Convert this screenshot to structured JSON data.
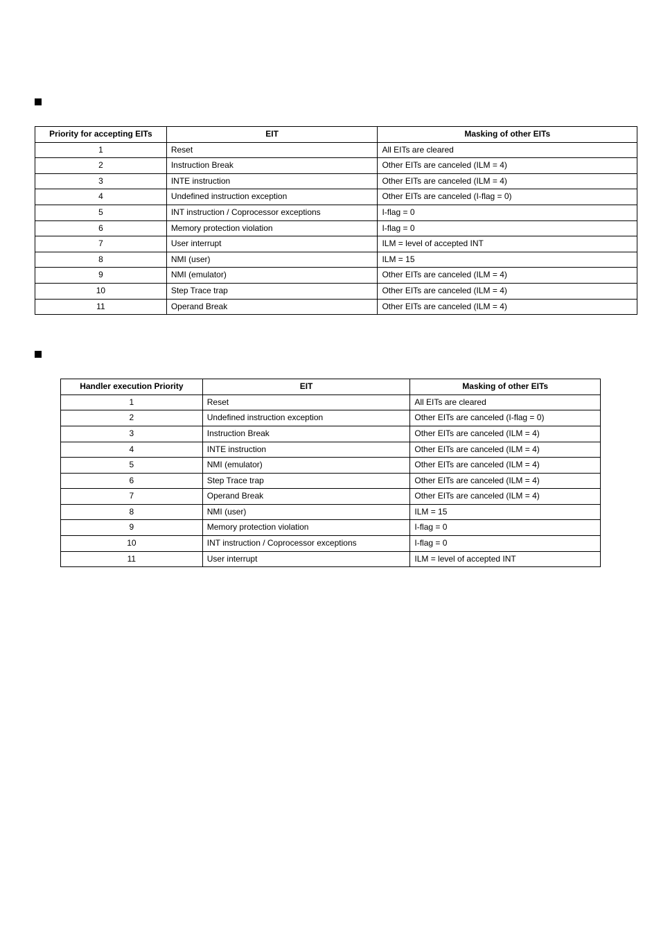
{
  "table1": {
    "headers": [
      "Priority for accepting EITs",
      "EIT",
      "Masking of other EITs"
    ],
    "rows": [
      [
        "1",
        "Reset",
        "All EITs are cleared"
      ],
      [
        "2",
        "Instruction Break",
        "Other EITs are canceled (ILM = 4)"
      ],
      [
        "3",
        "INTE instruction",
        "Other EITs are canceled (ILM = 4)"
      ],
      [
        "4",
        "Undefined instruction exception",
        "Other EITs are canceled (I-flag = 0)"
      ],
      [
        "5",
        "INT instruction / Coprocessor exceptions",
        "I-flag = 0"
      ],
      [
        "6",
        "Memory protection violation",
        "I-flag = 0"
      ],
      [
        "7",
        "User interrupt",
        "ILM = level of accepted INT"
      ],
      [
        "8",
        "NMI (user)",
        "ILM = 15"
      ],
      [
        "9",
        "NMI (emulator)",
        "Other EITs are canceled (ILM = 4)"
      ],
      [
        "10",
        "Step Trace trap",
        "Other EITs are canceled (ILM = 4)"
      ],
      [
        "11",
        "Operand Break",
        "Other EITs are canceled (ILM = 4)"
      ]
    ]
  },
  "table2": {
    "headers": [
      "Handler execution Priority",
      "EIT",
      "Masking of other EITs"
    ],
    "rows": [
      [
        "1",
        "Reset",
        "All EITs are cleared"
      ],
      [
        "2",
        "Undefined instruction exception",
        "Other EITs are canceled (I-flag = 0)"
      ],
      [
        "3",
        "Instruction Break",
        "Other EITs are canceled (ILM = 4)"
      ],
      [
        "4",
        "INTE instruction",
        "Other EITs are canceled (ILM = 4)"
      ],
      [
        "5",
        "NMI (emulator)",
        "Other EITs are canceled (ILM = 4)"
      ],
      [
        "6",
        "Step Trace trap",
        "Other EITs are canceled (ILM = 4)"
      ],
      [
        "7",
        "Operand Break",
        "Other EITs are canceled (ILM = 4)"
      ],
      [
        "8",
        "NMI (user)",
        "ILM = 15"
      ],
      [
        "9",
        "Memory protection violation",
        "I-flag = 0"
      ],
      [
        "10",
        "INT instruction / Coprocessor exceptions",
        "I-flag = 0"
      ],
      [
        "11",
        "User interrupt",
        "ILM = level of accepted INT"
      ]
    ]
  }
}
